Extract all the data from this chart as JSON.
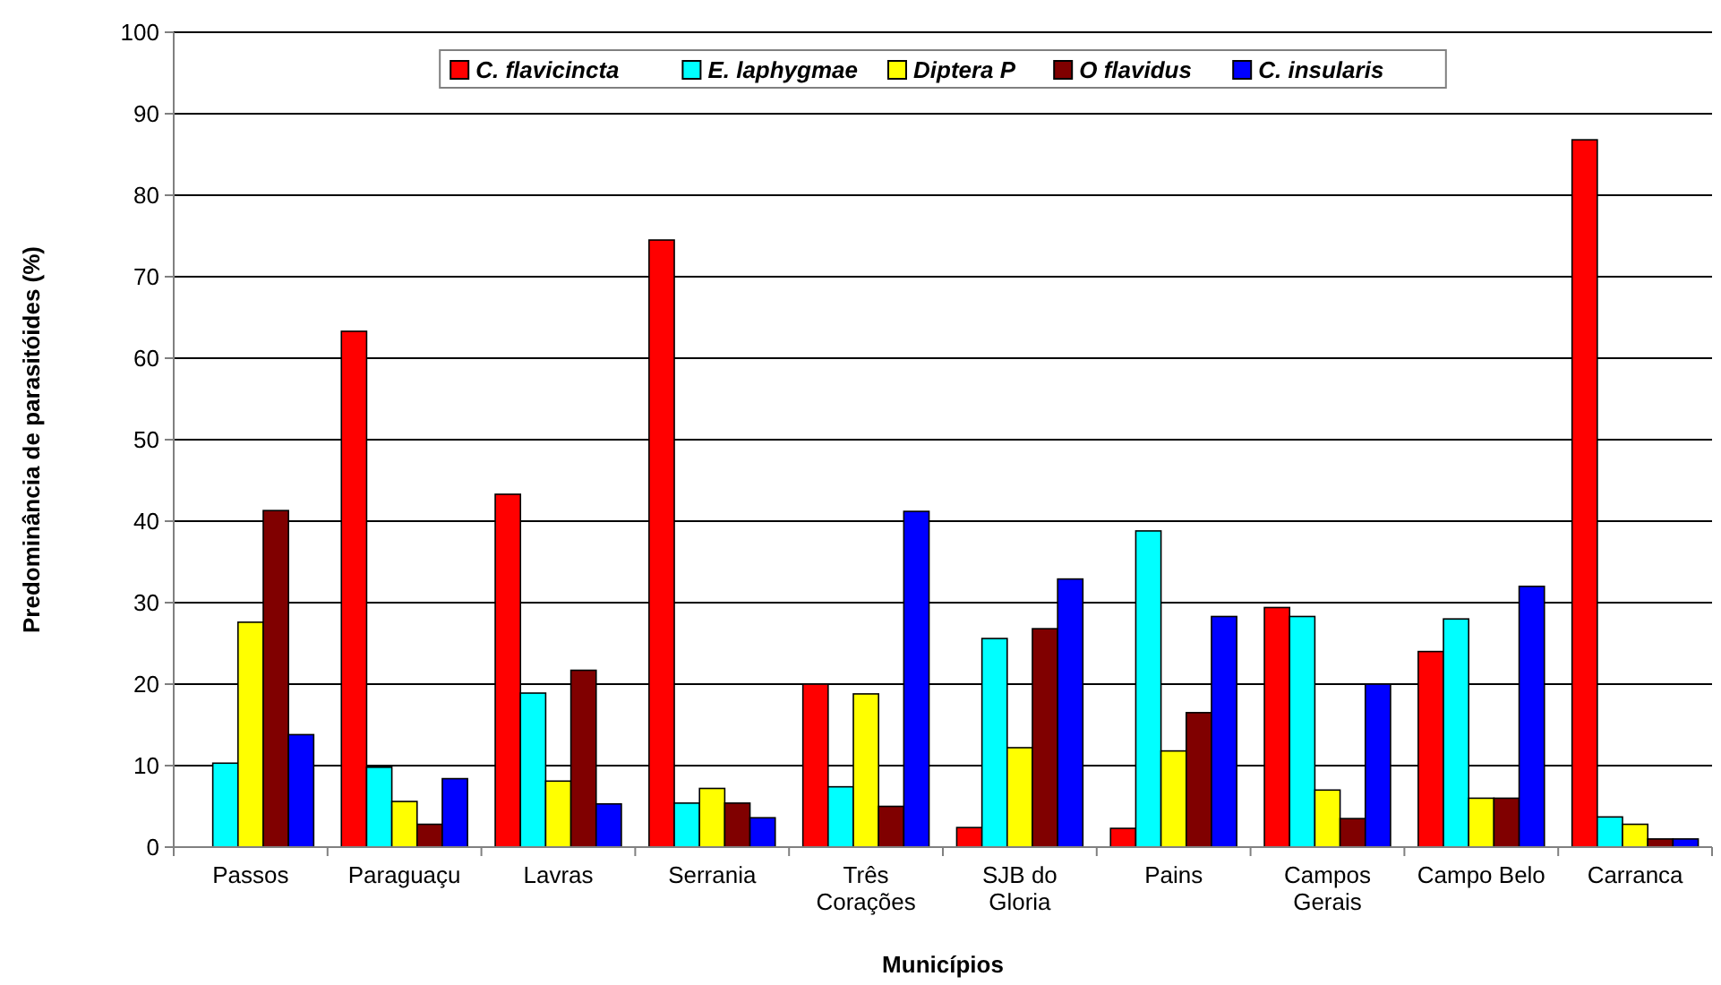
{
  "chart_data": {
    "type": "bar",
    "xlabel": "Municípios",
    "ylabel": "Predominância de parasitóides (%)",
    "categories": [
      "Passos",
      "Paraguaçu",
      "Lavras",
      "Serrania",
      "Três Corações",
      "SJB do Gloria",
      "Pains",
      "Campos Gerais",
      "Campo Belo",
      "Carranca"
    ],
    "series": [
      {
        "name": "C. flavicincta",
        "color": "#ff0000",
        "values": [
          0,
          63.3,
          43.3,
          74.5,
          20,
          2.4,
          2.3,
          29.4,
          24,
          86.8
        ]
      },
      {
        "name": "E. laphygmae",
        "color": "#00ffff",
        "values": [
          10.3,
          9.8,
          18.9,
          5.4,
          7.4,
          25.6,
          38.8,
          28.3,
          28,
          3.7
        ]
      },
      {
        "name": "Diptera P",
        "color": "#ffff00",
        "values": [
          27.6,
          5.6,
          8.1,
          7.2,
          18.8,
          12.2,
          11.8,
          7,
          6,
          2.8
        ]
      },
      {
        "name": "O flavidus",
        "color": "#800000",
        "values": [
          41.3,
          2.8,
          21.7,
          5.4,
          5,
          26.8,
          16.5,
          3.5,
          6,
          1
        ]
      },
      {
        "name": "C. insularis",
        "color": "#0000ff",
        "values": [
          13.8,
          8.4,
          5.3,
          3.6,
          41.2,
          32.9,
          28.3,
          20,
          32,
          1
        ]
      }
    ],
    "ylim": [
      0,
      100
    ],
    "yticks": [
      0,
      10,
      20,
      30,
      40,
      50,
      60,
      70,
      80,
      90,
      100
    ],
    "grid": "y",
    "legend": "top"
  }
}
